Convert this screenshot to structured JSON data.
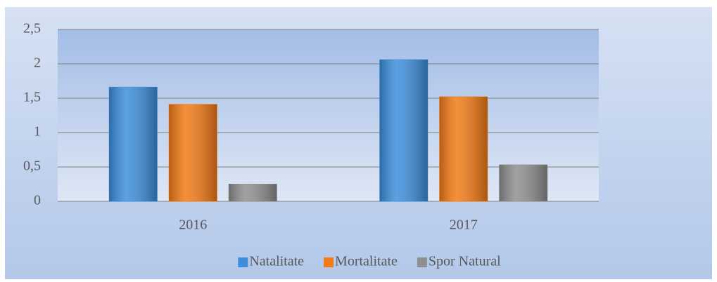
{
  "chart_data": {
    "type": "bar",
    "categories": [
      "2016",
      "2017"
    ],
    "series": [
      {
        "name": "Natalitate",
        "color": "#3d8fdc",
        "values": [
          1.66,
          2.06
        ]
      },
      {
        "name": "Mortalitate",
        "color": "#f27b17",
        "values": [
          1.41,
          1.52
        ]
      },
      {
        "name": "Spor Natural",
        "color": "#8f8f8f",
        "values": [
          0.25,
          0.53
        ]
      }
    ],
    "ylim": [
      0,
      2.5
    ],
    "yticks": [
      0,
      {
        "value": 0.5,
        "label": "0,5"
      },
      1,
      {
        "value": 1.5,
        "label": "1,5"
      },
      2,
      {
        "value": 2.5,
        "label": "2,5"
      }
    ],
    "grid": true,
    "legend": "bottom"
  }
}
